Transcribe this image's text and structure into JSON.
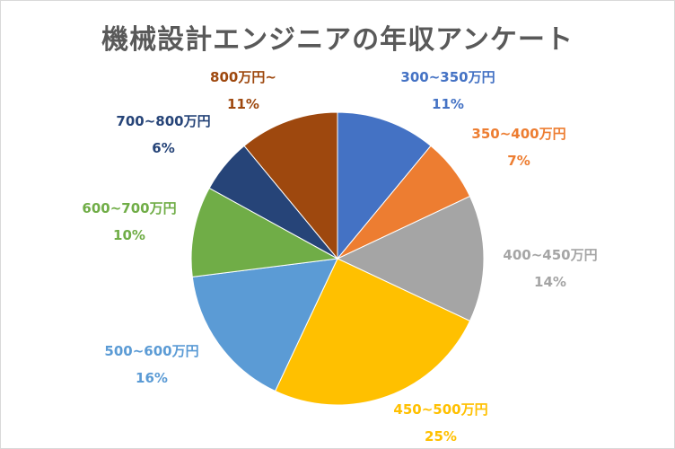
{
  "chart_data": {
    "type": "pie",
    "title": "機械設計エンジニアの年収アンケート",
    "categories": [
      "300~350万円",
      "350~400万円",
      "400~450万円",
      "450~500万円",
      "500~600万円",
      "600~700万円",
      "700~800万円",
      "800万円~"
    ],
    "values": [
      11,
      7,
      14,
      25,
      16,
      10,
      6,
      11
    ],
    "value_labels": [
      "11%",
      "7%",
      "14%",
      "25%",
      "16%",
      "10%",
      "6%",
      "11%"
    ],
    "colors": [
      "#4472C4",
      "#ED7D31",
      "#A5A5A5",
      "#FFC000",
      "#5B9BD5",
      "#70AD47",
      "#264478",
      "#9E480E"
    ],
    "start": "top",
    "direction": "clockwise",
    "legend": "none"
  }
}
